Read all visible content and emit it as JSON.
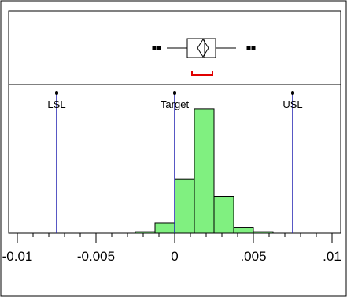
{
  "chart_data": {
    "type": "bar",
    "subtype": "histogram with outlier box plot and spec limits",
    "x_axis": {
      "range": [
        -0.0105,
        0.0105
      ],
      "tick_values": [
        -0.01,
        -0.005,
        0,
        0.005,
        0.01
      ],
      "tick_labels": [
        "-0.01",
        "-0.005",
        "0",
        ".005",
        ".01"
      ],
      "minor_tick_step": 0.001
    },
    "histogram": {
      "bin_width": 0.00125,
      "bins": [
        {
          "start": -0.0025,
          "end": -0.00125,
          "height": 0.01
        },
        {
          "start": -0.00125,
          "end": 0.0,
          "height": 0.07
        },
        {
          "start": 0.0,
          "end": 0.00125,
          "height": 0.37
        },
        {
          "start": 0.00125,
          "end": 0.0025,
          "height": 0.85
        },
        {
          "start": 0.0025,
          "end": 0.00375,
          "height": 0.25
        },
        {
          "start": 0.00375,
          "end": 0.005,
          "height": 0.04
        },
        {
          "start": 0.005,
          "end": 0.00625,
          "height": 0.01
        }
      ],
      "y_range": [
        0,
        1.0
      ],
      "bar_color": "#80f080"
    },
    "spec_limits": [
      {
        "label": "LSL",
        "value": -0.0075
      },
      {
        "label": "Target",
        "value": 0.0
      },
      {
        "label": "USL",
        "value": 0.0075
      }
    ],
    "spec_line_color": "#2020b0",
    "box_plot": {
      "whisker_low": -0.0005,
      "q1": 0.0008,
      "median": 0.0019,
      "q3": 0.0026,
      "whisker_high": 0.0039,
      "mean": 0.0018,
      "mean_diamond_halfwidth": 0.00035,
      "outliers_low": [
        -0.0013,
        -0.001
      ],
      "outliers_high": [
        0.0047,
        0.005
      ],
      "shortest_half": [
        0.0011,
        0.0024
      ],
      "shortest_half_color": "#e00000"
    }
  }
}
